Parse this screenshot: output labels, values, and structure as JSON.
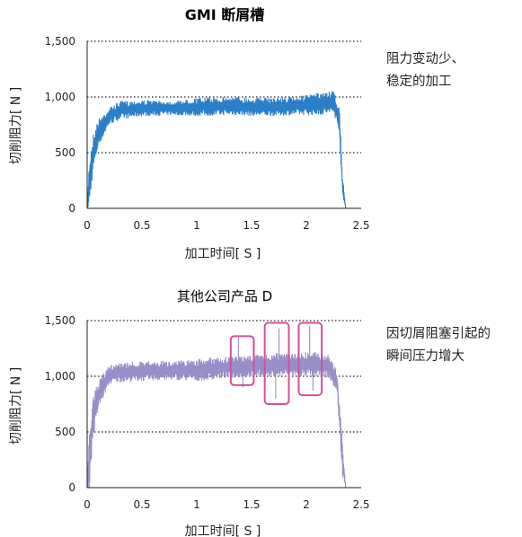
{
  "chart_data": [
    {
      "type": "line",
      "title": "GMI 断屑槽",
      "xlabel": "加工时间[ S ]",
      "ylabel": "切削阻力[ N ]",
      "xlim": [
        0,
        2.5
      ],
      "ylim": [
        0,
        1500
      ],
      "xticks": [
        "0",
        "0.5",
        "1",
        "1.5",
        "2",
        "2.5"
      ],
      "yticks": [
        "0",
        "500",
        "1,000",
        "1,500"
      ],
      "grid": "horizontal dotted at 500, 1000, 1500",
      "series": [
        {
          "color": "#2a7fc9",
          "band": {
            "x": [
              0,
              0.02,
              0.05,
              0.1,
              0.2,
              0.3,
              0.5,
              0.8,
              1.0,
              1.3,
              1.6,
              1.9,
              2.1,
              2.25,
              2.3,
              2.33,
              2.36
            ],
            "high": [
              50,
              450,
              650,
              800,
              900,
              960,
              970,
              960,
              990,
              1000,
              990,
              1000,
              1030,
              1050,
              900,
              300,
              0
            ],
            "low": [
              0,
              0,
              300,
              550,
              750,
              800,
              830,
              840,
              830,
              840,
              830,
              840,
              840,
              850,
              700,
              100,
              0
            ]
          }
        }
      ],
      "annotation": {
        "line1": "阻力变动少、",
        "line2": "稳定的加工"
      }
    },
    {
      "type": "line",
      "title": "其他公司产品 D",
      "xlabel": "加工时间[ S ]",
      "ylabel": "切削阻力[ N ]",
      "xlim": [
        0,
        2.5
      ],
      "ylim": [
        0,
        1500
      ],
      "xticks": [
        "0",
        "0.5",
        "1",
        "1.5",
        "2",
        "2.5"
      ],
      "yticks": [
        "0",
        "500",
        "1,000",
        "1,500"
      ],
      "grid": "horizontal dotted at 500, 1000, 1500",
      "series": [
        {
          "color": "#9a8ec9",
          "band": {
            "x": [
              0,
              0.02,
              0.05,
              0.1,
              0.2,
              0.3,
              0.5,
              0.8,
              1.0,
              1.2,
              1.4,
              1.6,
              1.8,
              2.0,
              2.2,
              2.28,
              2.33,
              2.36
            ],
            "high": [
              80,
              500,
              800,
              950,
              1100,
              1120,
              1130,
              1140,
              1150,
              1170,
              1180,
              1200,
              1210,
              1220,
              1200,
              1050,
              400,
              0
            ],
            "low": [
              0,
              0,
              400,
              700,
              930,
              950,
              960,
              970,
              960,
              980,
              990,
              1000,
              1000,
              1000,
              990,
              850,
              100,
              0
            ]
          },
          "spikes": [
            {
              "x": 1.38,
              "y": 1350
            },
            {
              "x": 1.42,
              "y": 900
            },
            {
              "x": 1.75,
              "y": 1430
            },
            {
              "x": 1.72,
              "y": 800
            },
            {
              "x": 2.03,
              "y": 1450
            },
            {
              "x": 2.06,
              "y": 870
            }
          ]
        }
      ],
      "highlights": [
        {
          "x0": 1.31,
          "x1": 1.52,
          "y0": 920,
          "y1": 1360
        },
        {
          "x0": 1.62,
          "x1": 1.84,
          "y0": 750,
          "y1": 1480
        },
        {
          "x0": 1.93,
          "x1": 2.14,
          "y0": 830,
          "y1": 1480
        }
      ],
      "highlight_color": "#d4509b",
      "annotation": {
        "line1": "因切屑阻塞引起的",
        "line2": "瞬间压力增大"
      }
    }
  ]
}
